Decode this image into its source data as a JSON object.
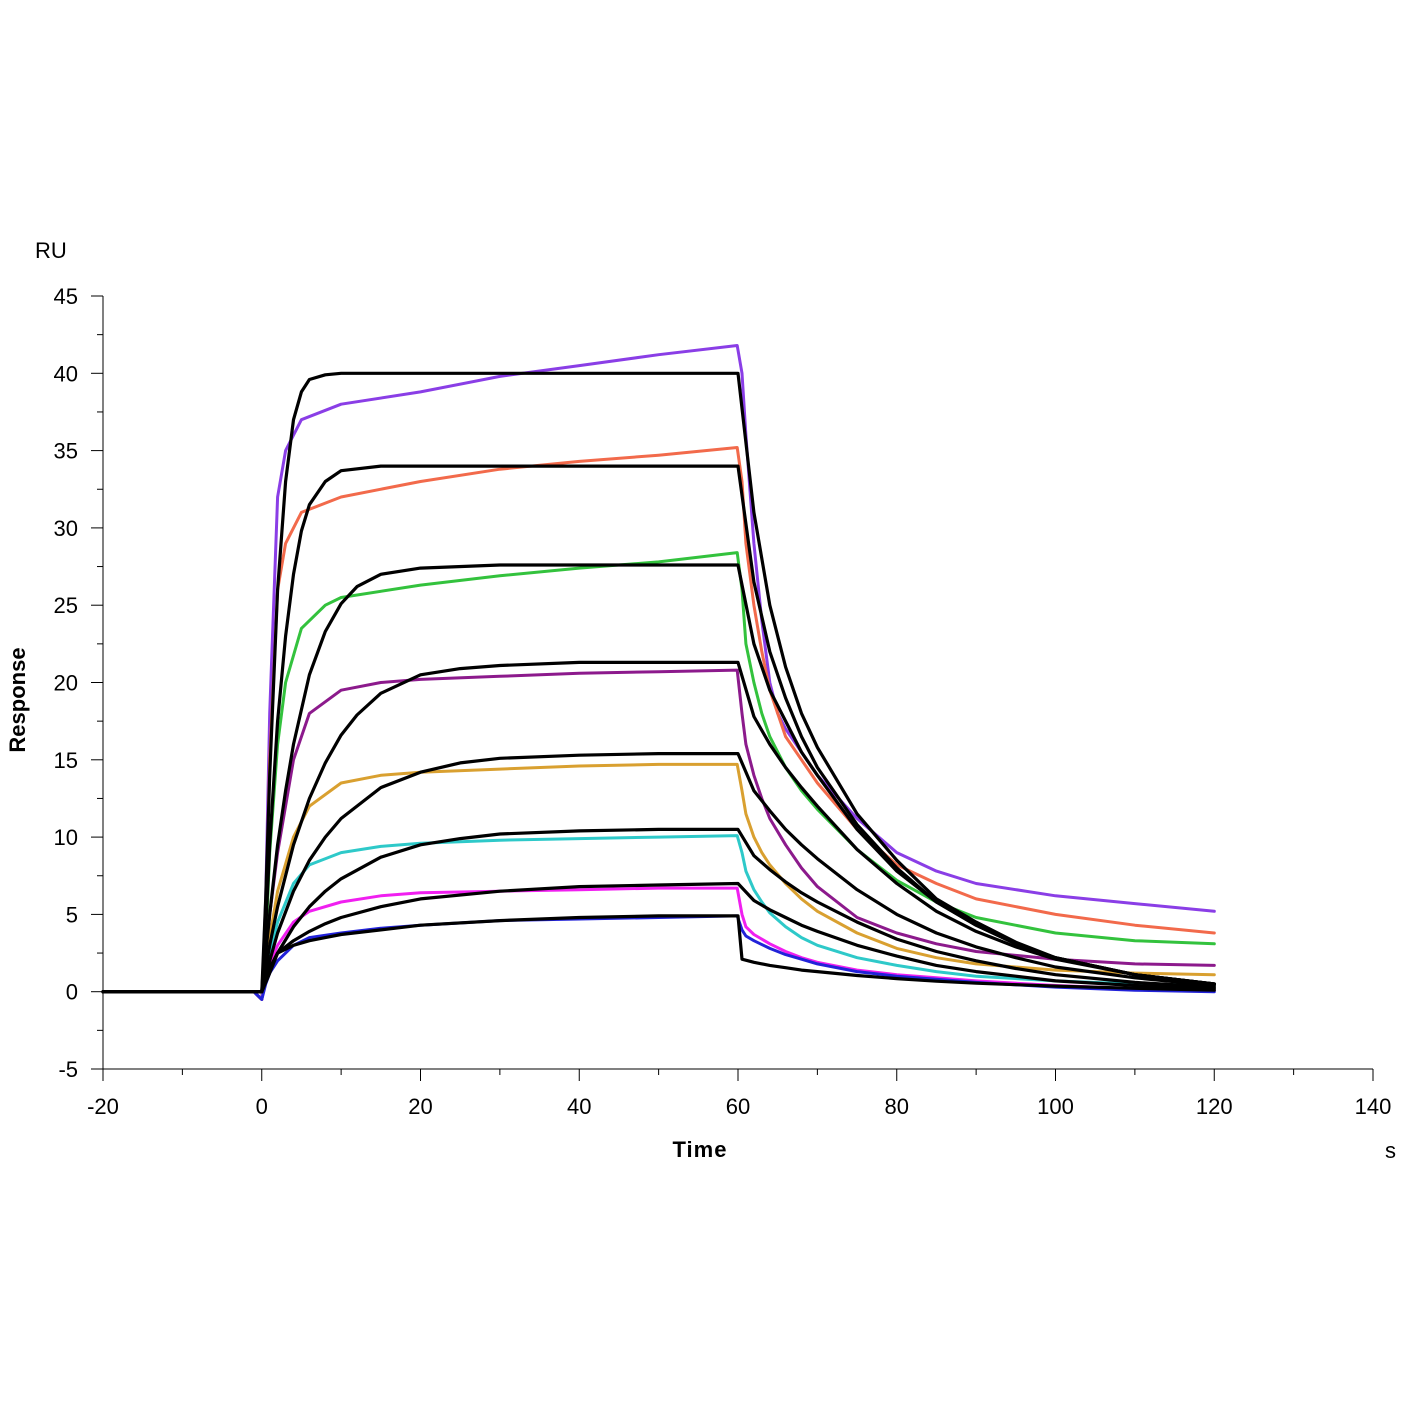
{
  "chart_data": {
    "type": "line",
    "xlabel": "Time",
    "ylabel": "Response",
    "x_unit": "s",
    "y_unit": "RU",
    "xlim": [
      -20,
      140
    ],
    "ylim": [
      -5,
      45
    ],
    "x_ticks": [
      -20,
      0,
      20,
      40,
      60,
      80,
      100,
      120,
      140
    ],
    "y_ticks": [
      -5,
      0,
      5,
      10,
      15,
      20,
      25,
      30,
      35,
      40,
      45
    ],
    "x_tick_labels": [
      "-20",
      "0",
      "20",
      "40",
      "60",
      "80",
      "100",
      "120",
      "140"
    ],
    "y_tick_labels": [
      "-5",
      "0",
      "5",
      "10",
      "15",
      "20",
      "25",
      "30",
      "35",
      "40",
      "45"
    ],
    "grid": false,
    "legend": "none",
    "series": [
      {
        "color": "#8a3ee6",
        "kind": "measured",
        "x": [
          -20,
          -1,
          0,
          0.5,
          1,
          2,
          3,
          5,
          10,
          20,
          30,
          40,
          50,
          59.9,
          60.5,
          61,
          62,
          63,
          64,
          65,
          66,
          68,
          70,
          75,
          80,
          85,
          90,
          100,
          110,
          120
        ],
        "y": [
          0,
          0,
          -0.5,
          6,
          18,
          32,
          35,
          37,
          38,
          38.8,
          39.8,
          40.5,
          41.2,
          41.8,
          40,
          36,
          29,
          24,
          20,
          18,
          17,
          15.5,
          14,
          11.2,
          9,
          7.8,
          7,
          6.2,
          5.7,
          5.2
        ]
      },
      {
        "color": "#f26a4b",
        "kind": "measured",
        "x": [
          -20,
          -1,
          0,
          0.5,
          1,
          2,
          3,
          5,
          10,
          20,
          30,
          40,
          50,
          59.9,
          60.5,
          61,
          62,
          63,
          64,
          66,
          68,
          70,
          75,
          80,
          85,
          90,
          100,
          110,
          120
        ],
        "y": [
          0,
          0,
          -0.5,
          5,
          15,
          26,
          29,
          31,
          32,
          33,
          33.8,
          34.3,
          34.7,
          35.2,
          33,
          29,
          25,
          22,
          19.5,
          16.5,
          15,
          13.5,
          10.5,
          8.2,
          7,
          6,
          5,
          4.3,
          3.8
        ]
      },
      {
        "color": "#33c23d",
        "kind": "measured",
        "x": [
          -20,
          -1,
          0,
          0.5,
          1,
          2,
          3,
          5,
          8,
          10,
          20,
          30,
          40,
          50,
          59.9,
          60.5,
          61,
          62,
          63,
          64,
          66,
          68,
          70,
          75,
          80,
          85,
          90,
          100,
          110,
          120
        ],
        "y": [
          0,
          0,
          -0.5,
          3,
          9,
          16,
          20,
          23.5,
          25,
          25.5,
          26.3,
          26.9,
          27.4,
          27.8,
          28.4,
          26,
          22.5,
          20,
          18,
          16.5,
          14.5,
          13,
          11.8,
          9.2,
          7.2,
          5.8,
          4.8,
          3.8,
          3.3,
          3.1
        ]
      },
      {
        "color": "#8c1a8c",
        "kind": "measured",
        "x": [
          -20,
          -1,
          0,
          0.5,
          1,
          2,
          4,
          6,
          10,
          15,
          20,
          30,
          40,
          50,
          59.9,
          60.5,
          61,
          62,
          63,
          64,
          66,
          68,
          70,
          75,
          80,
          85,
          90,
          100,
          110,
          120
        ],
        "y": [
          0,
          0,
          -0.5,
          2,
          5,
          9,
          15,
          18,
          19.5,
          20,
          20.2,
          20.4,
          20.6,
          20.7,
          20.8,
          18,
          16,
          14,
          12.5,
          11.2,
          9.5,
          8,
          6.8,
          4.8,
          3.8,
          3.1,
          2.6,
          2.1,
          1.8,
          1.7
        ]
      },
      {
        "color": "#d9a030",
        "kind": "measured",
        "x": [
          -20,
          -1,
          0,
          0.5,
          1,
          2,
          4,
          6,
          10,
          15,
          20,
          30,
          40,
          50,
          59.9,
          60.5,
          61,
          62,
          63,
          64,
          66,
          68,
          70,
          75,
          80,
          85,
          90,
          100,
          110,
          120
        ],
        "y": [
          0,
          0,
          -0.5,
          1.5,
          3.5,
          6.5,
          10,
          12,
          13.5,
          14,
          14.2,
          14.4,
          14.6,
          14.7,
          14.7,
          13,
          11.5,
          10,
          9,
          8.2,
          7,
          6,
          5.2,
          3.8,
          2.8,
          2.2,
          1.8,
          1.4,
          1.2,
          1.1
        ]
      },
      {
        "color": "#2ec9c9",
        "kind": "measured",
        "x": [
          -20,
          -1,
          0,
          0.5,
          1,
          2,
          4,
          6,
          10,
          15,
          20,
          30,
          40,
          50,
          59.9,
          60.5,
          61,
          62,
          63,
          64,
          66,
          68,
          70,
          75,
          80,
          85,
          90,
          100,
          110,
          120
        ],
        "y": [
          0,
          0,
          -0.5,
          1,
          2.5,
          4.5,
          7,
          8.2,
          9,
          9.4,
          9.6,
          9.8,
          9.9,
          10,
          10.1,
          9,
          7.8,
          6.6,
          5.8,
          5.1,
          4.2,
          3.5,
          3,
          2.2,
          1.7,
          1.3,
          1,
          0.7,
          0.5,
          0.4
        ]
      },
      {
        "color": "#f01ff0",
        "kind": "measured",
        "x": [
          -20,
          -1,
          0,
          0.5,
          1,
          2,
          4,
          6,
          10,
          15,
          20,
          30,
          40,
          50,
          59.9,
          60.5,
          61,
          62,
          64,
          66,
          68,
          70,
          75,
          80,
          85,
          90,
          100,
          110,
          120
        ],
        "y": [
          0,
          0,
          -0.5,
          0.8,
          1.8,
          3,
          4.5,
          5.2,
          5.8,
          6.2,
          6.4,
          6.5,
          6.6,
          6.7,
          6.7,
          5,
          4.2,
          3.7,
          3.1,
          2.6,
          2.2,
          1.9,
          1.4,
          1.1,
          0.9,
          0.7,
          0.4,
          0.2,
          0.1
        ]
      },
      {
        "color": "#2222d9",
        "kind": "measured",
        "x": [
          -20,
          -1,
          0,
          0.5,
          1,
          2,
          4,
          6,
          10,
          15,
          20,
          30,
          40,
          50,
          59.9,
          60.5,
          61,
          62,
          64,
          66,
          68,
          70,
          75,
          80,
          85,
          90,
          100,
          110,
          120
        ],
        "y": [
          0,
          0,
          -0.5,
          0.5,
          1.2,
          2,
          3,
          3.5,
          3.8,
          4.1,
          4.3,
          4.6,
          4.7,
          4.8,
          4.9,
          4,
          3.6,
          3.3,
          2.8,
          2.4,
          2.1,
          1.8,
          1.3,
          1,
          0.8,
          0.6,
          0.3,
          0.1,
          0
        ]
      },
      {
        "color": "#000000",
        "kind": "fit",
        "x": [
          -20,
          0,
          0.5,
          1,
          2,
          3,
          4,
          5,
          6,
          8,
          10,
          20,
          40,
          60,
          60,
          62,
          64,
          66,
          68,
          70,
          75,
          80,
          85,
          90,
          95,
          100,
          110,
          120
        ],
        "y": [
          0,
          0,
          6,
          14,
          26,
          33,
          37,
          38.8,
          39.6,
          39.9,
          40,
          40,
          40,
          40,
          40,
          31,
          25,
          21,
          18,
          15.8,
          11.5,
          8.5,
          6,
          4.5,
          3.2,
          2.2,
          1.1,
          0.5
        ]
      },
      {
        "color": "#000000",
        "kind": "fit",
        "x": [
          -20,
          0,
          0.5,
          1,
          2,
          3,
          4,
          5,
          6,
          8,
          10,
          15,
          20,
          40,
          60,
          60,
          62,
          64,
          66,
          68,
          70,
          75,
          80,
          85,
          90,
          95,
          100,
          110,
          120
        ],
        "y": [
          0,
          0,
          4,
          9.5,
          17.5,
          23,
          27,
          29.8,
          31.5,
          33,
          33.7,
          34,
          34,
          34,
          34,
          34,
          26.5,
          22,
          19,
          16.5,
          14.5,
          10.8,
          8,
          5.8,
          4.3,
          3.1,
          2.2,
          1.1,
          0.5
        ]
      },
      {
        "color": "#000000",
        "kind": "fit",
        "x": [
          -20,
          0,
          1,
          2,
          3,
          4,
          6,
          8,
          10,
          12,
          15,
          20,
          30,
          40,
          60,
          60,
          62,
          64,
          66,
          68,
          70,
          75,
          80,
          85,
          90,
          95,
          100,
          110,
          120
        ],
        "y": [
          0,
          0,
          5,
          9.5,
          13,
          16,
          20.5,
          23.3,
          25.1,
          26.2,
          27,
          27.4,
          27.6,
          27.6,
          27.6,
          27.6,
          22.5,
          19.5,
          17.5,
          15.5,
          14,
          10.5,
          7.8,
          5.8,
          4.3,
          3.1,
          2.2,
          1.1,
          0.5
        ]
      },
      {
        "color": "#000000",
        "kind": "fit",
        "x": [
          -20,
          0,
          1,
          2,
          4,
          6,
          8,
          10,
          12,
          15,
          20,
          25,
          30,
          40,
          60,
          60,
          62,
          64,
          66,
          68,
          70,
          75,
          80,
          85,
          90,
          95,
          100,
          110,
          120
        ],
        "y": [
          0,
          0,
          3,
          5.5,
          9.5,
          12.5,
          14.8,
          16.6,
          17.9,
          19.3,
          20.5,
          20.9,
          21.1,
          21.3,
          21.3,
          21.3,
          17.8,
          16,
          14.5,
          13.2,
          12,
          9.2,
          7,
          5.2,
          3.9,
          2.9,
          2.1,
          1.1,
          0.5
        ]
      },
      {
        "color": "#000000",
        "kind": "fit",
        "x": [
          -20,
          0,
          1,
          2,
          4,
          6,
          8,
          10,
          15,
          20,
          25,
          30,
          40,
          50,
          60,
          60,
          62,
          64,
          66,
          68,
          70,
          75,
          80,
          85,
          90,
          95,
          100,
          110,
          120
        ],
        "y": [
          0,
          0,
          2,
          3.8,
          6.5,
          8.5,
          10,
          11.2,
          13.2,
          14.2,
          14.8,
          15.1,
          15.3,
          15.4,
          15.4,
          15.4,
          13,
          11.7,
          10.5,
          9.5,
          8.6,
          6.6,
          5,
          3.8,
          2.9,
          2.2,
          1.6,
          0.9,
          0.4
        ]
      },
      {
        "color": "#000000",
        "kind": "fit",
        "x": [
          -20,
          0,
          1,
          2,
          4,
          6,
          8,
          10,
          15,
          20,
          25,
          30,
          40,
          50,
          60,
          60,
          62,
          64,
          66,
          68,
          70,
          75,
          80,
          85,
          90,
          95,
          100,
          110,
          120
        ],
        "y": [
          0,
          0,
          1.5,
          2.5,
          4.2,
          5.5,
          6.5,
          7.3,
          8.7,
          9.5,
          9.9,
          10.2,
          10.4,
          10.5,
          10.5,
          10.5,
          8.8,
          7.9,
          7.1,
          6.4,
          5.8,
          4.5,
          3.4,
          2.6,
          2,
          1.5,
          1.1,
          0.6,
          0.3
        ]
      },
      {
        "color": "#000000",
        "kind": "fit",
        "x": [
          -20,
          0,
          1,
          2,
          4,
          6,
          8,
          10,
          15,
          20,
          30,
          40,
          50,
          60,
          60,
          62,
          64,
          66,
          68,
          70,
          75,
          80,
          85,
          90,
          95,
          100,
          110,
          120
        ],
        "y": [
          0,
          0,
          1.5,
          2.5,
          3.3,
          3.9,
          4.4,
          4.8,
          5.5,
          6,
          6.5,
          6.8,
          6.9,
          7,
          7,
          5.9,
          5.3,
          4.8,
          4.3,
          3.9,
          3,
          2.3,
          1.7,
          1.3,
          1,
          0.7,
          0.4,
          0.2
        ]
      },
      {
        "color": "#000000",
        "kind": "fit",
        "x": [
          -20,
          0,
          1,
          2,
          4,
          6,
          8,
          10,
          15,
          20,
          30,
          40,
          50,
          60,
          60,
          60.5,
          62,
          64,
          66,
          68,
          70,
          75,
          80,
          85,
          90,
          95,
          100,
          110,
          120
        ],
        "y": [
          0,
          0,
          1.2,
          2.5,
          3,
          3.3,
          3.5,
          3.7,
          4,
          4.3,
          4.6,
          4.8,
          4.9,
          4.9,
          4.9,
          2.1,
          1.9,
          1.7,
          1.55,
          1.4,
          1.3,
          1.05,
          0.85,
          0.68,
          0.55,
          0.45,
          0.36,
          0.22,
          0.1
        ]
      }
    ]
  }
}
